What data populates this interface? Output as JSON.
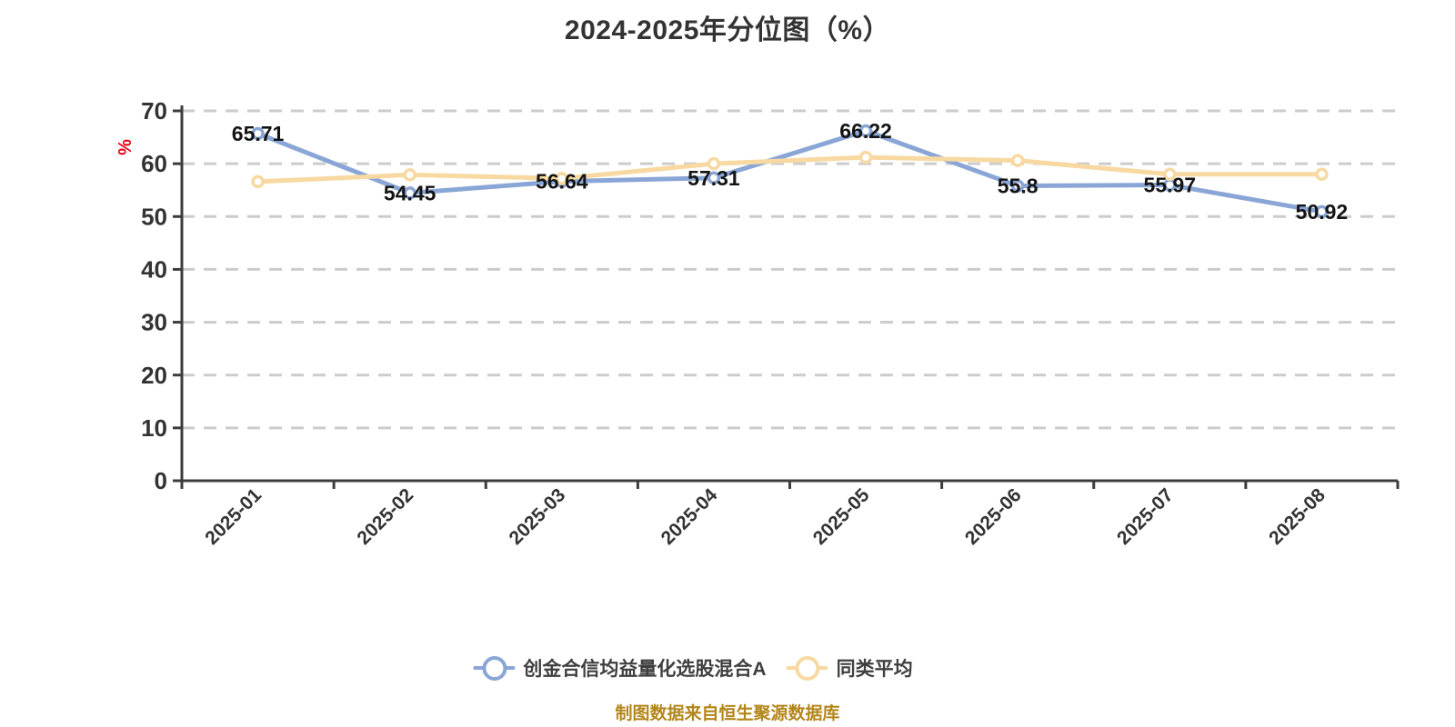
{
  "title": "2024-2025年分位图（%）",
  "footer": "制图数据来自恒生聚源数据库",
  "colors": {
    "series_fund": "#8AA6D6",
    "series_average": "#F7D9A1",
    "grid": "#CCCCCC",
    "axis": "#3C3C3C",
    "tick_label": "#333333",
    "data_label": "#141414",
    "y_axis_name": "#E60012",
    "title": "#333333",
    "legend_text": "#3F3F3F",
    "footer_text": "#B3861A",
    "point_fill": "#FFFFFF"
  },
  "chart_data": {
    "type": "line",
    "title": "2024-2025年分位图（%）",
    "categories": [
      "2025-01",
      "2025-02",
      "2025-03",
      "2025-04",
      "2025-05",
      "2025-06",
      "2025-07",
      "2025-08"
    ],
    "series": [
      {
        "name": "创金合信均益量化选股混合A",
        "color": "#8AA6D6",
        "values": [
          65.71,
          54.45,
          56.64,
          57.31,
          66.22,
          55.8,
          55.97,
          50.92
        ],
        "labeled": true
      },
      {
        "name": "同类平均",
        "color": "#F7D9A1",
        "values": [
          56.6,
          57.9,
          57.2,
          60.0,
          61.2,
          60.6,
          58.0,
          58.0
        ],
        "labeled": false
      }
    ],
    "xlabel": "",
    "ylabel": "%",
    "ylim": [
      0,
      70
    ],
    "y_ticks": [
      0,
      10,
      20,
      30,
      40,
      50,
      60,
      70
    ],
    "x_tick_rotation": -45,
    "grid": "horizontal-dashed",
    "legend_position": "bottom",
    "marker": "open-circle"
  }
}
